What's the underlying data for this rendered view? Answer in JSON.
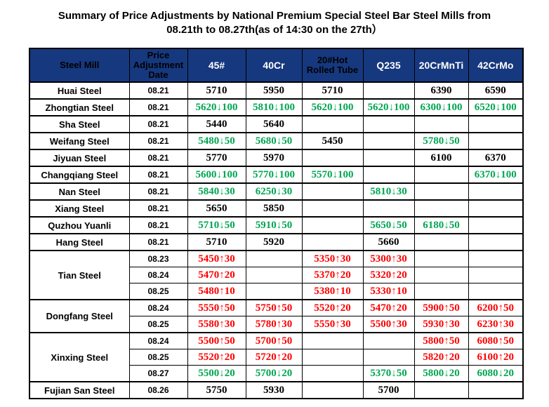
{
  "title": {
    "line1": "Summary of Price Adjustments by National Premium Special Steel Bar Steel Mills from",
    "line2": "08.21th to 08.27th(as of 14:30 on the 27th）"
  },
  "colors": {
    "header_bg": "#16387E",
    "header_text_dark": "#000000",
    "header_text_light": "#FFFFFF",
    "decrease_green": "#00A651",
    "increase_red": "#FF0000",
    "unchanged_black": "#000000",
    "border": "#000000"
  },
  "table": {
    "columns": [
      {
        "label": "Steel Mill",
        "text": "black"
      },
      {
        "label": "Price\nAdjustment\nDate",
        "text": "black"
      },
      {
        "label": "45#",
        "text": "white"
      },
      {
        "label": "40Cr",
        "text": "white"
      },
      {
        "label": "20#Hot\nRolled Tube",
        "text": "black"
      },
      {
        "label": "Q235",
        "text": "white"
      },
      {
        "label": "20CrMnTi",
        "text": "white"
      },
      {
        "label": "42CrMo",
        "text": "white"
      }
    ],
    "groups": [
      {
        "mill": "Huai Steel",
        "rows": [
          {
            "date": "08.21",
            "prices": [
              "5710",
              "5950",
              "5710",
              "",
              "6390",
              "6590"
            ]
          }
        ]
      },
      {
        "mill": "Zhongtian Steel",
        "rows": [
          {
            "date": "08.21",
            "prices": [
              "5620↓100",
              "5810↓100",
              "5620↓100",
              "5620↓100",
              "6300↓100",
              "6520↓100"
            ]
          }
        ]
      },
      {
        "mill": "Sha Steel",
        "rows": [
          {
            "date": "08.21",
            "prices": [
              "5440",
              "5640",
              "",
              "",
              "",
              ""
            ]
          }
        ]
      },
      {
        "mill": "Weifang Steel",
        "rows": [
          {
            "date": "08.21",
            "prices": [
              "5480↓50",
              "5680↓50",
              "5450",
              "",
              "5780↓50",
              ""
            ]
          }
        ]
      },
      {
        "mill": "Jiyuan Steel",
        "rows": [
          {
            "date": "08.21",
            "prices": [
              "5770",
              "5970",
              "",
              "",
              "6100",
              "6370"
            ]
          }
        ]
      },
      {
        "mill": "Changqiang Steel",
        "rows": [
          {
            "date": "08.21",
            "prices": [
              "5600↓100",
              "5770↓100",
              "5570↓100",
              "",
              "",
              "6370↓100"
            ]
          }
        ]
      },
      {
        "mill": "Nan Steel",
        "rows": [
          {
            "date": "08.21",
            "prices": [
              "5840↓30",
              "6250↓30",
              "",
              "5810↓30",
              "",
              ""
            ]
          }
        ]
      },
      {
        "mill": "Xiang Steel",
        "rows": [
          {
            "date": "08.21",
            "prices": [
              "5650",
              "5850",
              "",
              "",
              "",
              ""
            ]
          }
        ]
      },
      {
        "mill": "Quzhou Yuanli",
        "rows": [
          {
            "date": "08.21",
            "prices": [
              "5710↓50",
              "5910↓50",
              "",
              "5650↓50",
              "6180↓50",
              ""
            ]
          }
        ]
      },
      {
        "mill": "Hang Steel",
        "rows": [
          {
            "date": "08.21",
            "prices": [
              "5710",
              "5920",
              "",
              "5660",
              "",
              ""
            ]
          }
        ]
      },
      {
        "mill": "Tian Steel",
        "rows": [
          {
            "date": "08.23",
            "prices": [
              "5450↑30",
              "",
              "5350↑30",
              "5300↑30",
              "",
              ""
            ]
          },
          {
            "date": "08.24",
            "prices": [
              "5470↑20",
              "",
              "5370↑20",
              "5320↑20",
              "",
              ""
            ]
          },
          {
            "date": "08.25",
            "prices": [
              "5480↑10",
              "",
              "5380↑10",
              "5330↑10",
              "",
              ""
            ]
          }
        ]
      },
      {
        "mill": "Dongfang Steel",
        "rows": [
          {
            "date": "08.24",
            "prices": [
              "5550↑50",
              "5750↑50",
              "5520↑20",
              "5470↑20",
              "5900↑50",
              "6200↑50"
            ]
          },
          {
            "date": "08.25",
            "prices": [
              "5580↑30",
              "5780↑30",
              "5550↑30",
              "5500↑30",
              "5930↑30",
              "6230↑30"
            ]
          }
        ]
      },
      {
        "mill": "Xinxing Steel",
        "rows": [
          {
            "date": "08.24",
            "prices": [
              "5500↑50",
              "5700↑50",
              "",
              "",
              "5800↑50",
              "6080↑50"
            ]
          },
          {
            "date": "08.25",
            "prices": [
              "5520↑20",
              "5720↑20",
              "",
              "",
              "5820↑20",
              "6100↑20"
            ]
          },
          {
            "date": "08.27",
            "prices": [
              "5500↓20",
              "5700↓20",
              "",
              "5370↓50",
              "5800↓20",
              "6080↓20"
            ]
          }
        ]
      },
      {
        "mill": "Fujian San Steel",
        "rows": [
          {
            "date": "08.26",
            "prices": [
              "5750",
              "5930",
              "",
              "5700",
              "",
              ""
            ]
          }
        ]
      }
    ]
  }
}
